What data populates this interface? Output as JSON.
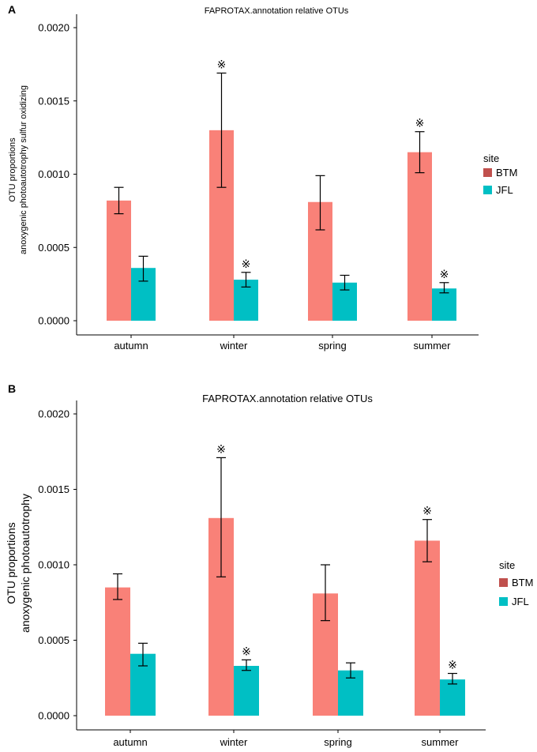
{
  "chart_data": [
    {
      "type": "bar",
      "panel": "A",
      "title": "FAPROTAX.annotation relative OTUs",
      "ylabel_lines": [
        "OTU proportions",
        "anoxygenic photoautotrophy sulfur oxidizing"
      ],
      "xlabel": "",
      "categories": [
        "autumn",
        "winter",
        "spring",
        "summer"
      ],
      "ylim": [
        0,
        0.002
      ],
      "yticks": [
        "0.0000",
        "0.0005",
        "0.0010",
        "0.0015",
        "0.0020"
      ],
      "series": [
        {
          "name": "BTM",
          "color": "#f8766d",
          "values": [
            0.00082,
            0.0013,
            0.00081,
            0.00115
          ],
          "err_low": [
            0.00073,
            0.00091,
            0.00062,
            0.00101
          ],
          "err_high": [
            0.00091,
            0.00169,
            0.00099,
            0.00129
          ],
          "sig": [
            "",
            "※",
            "",
            "※"
          ]
        },
        {
          "name": "JFL",
          "color": "#00bfc4",
          "values": [
            0.00036,
            0.00028,
            0.00026,
            0.00022
          ],
          "err_low": [
            0.00027,
            0.00023,
            0.00021,
            0.00019
          ],
          "err_high": [
            0.00044,
            0.00033,
            0.00031,
            0.00026
          ],
          "sig": [
            "",
            "※",
            "",
            "※"
          ]
        }
      ],
      "legend": {
        "title": "site",
        "position": "right",
        "swatch_colors": [
          "#c0504d",
          "#00bfc4"
        ]
      }
    },
    {
      "type": "bar",
      "panel": "B",
      "title": "FAPROTAX.annotation relative OTUs",
      "ylabel_lines": [
        "OTU proportions",
        "anoxygenic photoautotrophy"
      ],
      "xlabel": "",
      "categories": [
        "autumn",
        "winter",
        "spring",
        "summer"
      ],
      "ylim": [
        0,
        0.002
      ],
      "yticks": [
        "0.0000",
        "0.0005",
        "0.0010",
        "0.0015",
        "0.0020"
      ],
      "series": [
        {
          "name": "BTM",
          "color": "#f8766d",
          "values": [
            0.00085,
            0.00131,
            0.00081,
            0.00116
          ],
          "err_low": [
            0.00077,
            0.00092,
            0.00063,
            0.00102
          ],
          "err_high": [
            0.00094,
            0.00171,
            0.001,
            0.0013
          ],
          "sig": [
            "",
            "※",
            "",
            "※"
          ]
        },
        {
          "name": "JFL",
          "color": "#00bfc4",
          "values": [
            0.00041,
            0.00033,
            0.0003,
            0.00024
          ],
          "err_low": [
            0.00033,
            0.0003,
            0.00025,
            0.00021
          ],
          "err_high": [
            0.00048,
            0.00037,
            0.00035,
            0.00028
          ],
          "sig": [
            "",
            "※",
            "",
            "※"
          ]
        }
      ],
      "legend": {
        "title": "site",
        "position": "right",
        "swatch_colors": [
          "#c0504d",
          "#00bfc4"
        ]
      }
    }
  ]
}
